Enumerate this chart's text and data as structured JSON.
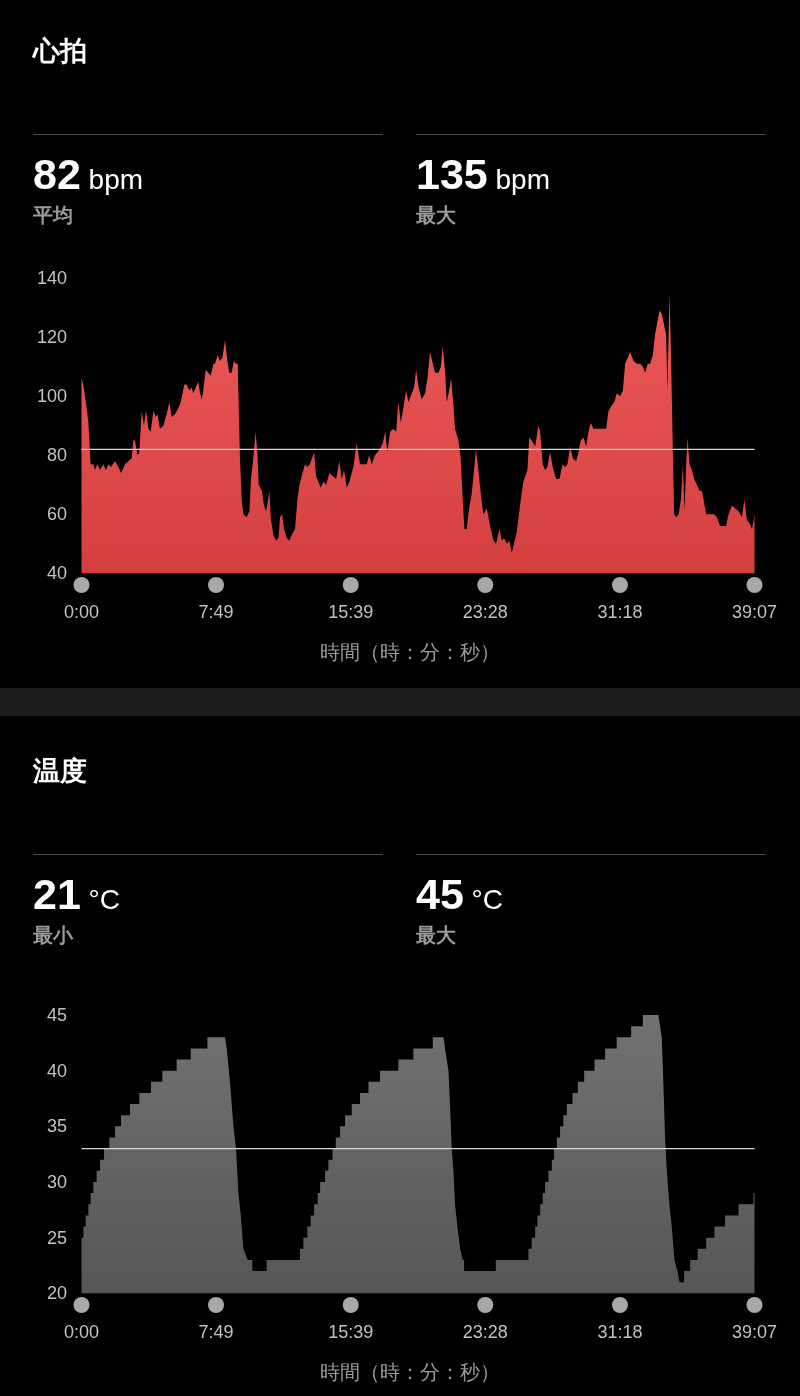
{
  "chart_data": [
    {
      "type": "area",
      "title": "心拍",
      "annotations": [
        "82 bpm",
        "平均",
        "135 bpm",
        "最大"
      ],
      "xlabel": "時間（時：分：秒）",
      "color": "#ec4545",
      "xlim": [
        0,
        39.12
      ],
      "xticks": [
        {
          "value": 0,
          "label": "0:00"
        },
        {
          "value": 7.82,
          "label": "7:49"
        },
        {
          "value": 15.65,
          "label": "15:39"
        },
        {
          "value": 23.47,
          "label": "23:28"
        },
        {
          "value": 31.3,
          "label": "31:18"
        },
        {
          "value": 39.12,
          "label": "39:07"
        }
      ],
      "ylim": [
        40,
        140
      ],
      "yticks": [
        40,
        60,
        80,
        100,
        120,
        140
      ],
      "ref_lines": [
        {
          "axis": "y",
          "value": 82,
          "color": "#d4d4d4"
        }
      ],
      "x": [
        0,
        0.1,
        0.3,
        0.4,
        0.53,
        0.69,
        0.78,
        0.92,
        1.08,
        1.27,
        1.42,
        1.56,
        1.7,
        1.95,
        2.14,
        2.3,
        2.53,
        2.72,
        2.92,
        3.01,
        3.11,
        3.25,
        3.36,
        3.5,
        3.63,
        3.75,
        3.89,
        4.02,
        4.18,
        4.31,
        4.41,
        4.56,
        4.76,
        4.95,
        5.11,
        5.24,
        5.44,
        5.63,
        5.77,
        5.98,
        6.11,
        6.27,
        6.4,
        6.5,
        6.64,
        6.79,
        6.89,
        6.99,
        7.08,
        7.22,
        7.37,
        7.51,
        7.67,
        7.76,
        7.92,
        8.05,
        8.19,
        8.34,
        8.48,
        8.59,
        8.73,
        8.86,
        8.98,
        9.08,
        9.21,
        9.31,
        9.41,
        9.6,
        9.76,
        9.85,
        9.99,
        10.12,
        10.22,
        10.3,
        10.48,
        10.61,
        10.73,
        10.82,
        10.92,
        11.0,
        11.15,
        11.31,
        11.45,
        11.54,
        11.66,
        11.77,
        11.93,
        12.08,
        12.22,
        12.41,
        12.55,
        12.67,
        12.8,
        12.99,
        13.13,
        13.28,
        13.52,
        13.63,
        13.77,
        13.91,
        14.06,
        14.22,
        14.41,
        14.6,
        14.8,
        14.99,
        15.13,
        15.26,
        15.42,
        15.57,
        15.8,
        16.0,
        16.19,
        16.43,
        16.58,
        16.72,
        16.87,
        17.06,
        17.32,
        17.51,
        17.65,
        17.78,
        17.94,
        18.13,
        18.29,
        18.42,
        18.56,
        18.71,
        18.87,
        19.0,
        19.2,
        19.33,
        19.45,
        19.59,
        19.78,
        19.97,
        20.11,
        20.26,
        20.42,
        20.55,
        20.75,
        20.89,
        21.0,
        21.14,
        21.23,
        21.37,
        21.48,
        21.62,
        21.71,
        21.91,
        22.04,
        22.16,
        22.26,
        22.39,
        22.53,
        22.68,
        22.82,
        22.93,
        23.07,
        23.21,
        23.36,
        23.56,
        23.75,
        23.95,
        24.1,
        24.29,
        24.43,
        24.56,
        24.72,
        24.87,
        25.01,
        25.14,
        25.3,
        25.49,
        25.68,
        25.92,
        26.03,
        26.17,
        26.37,
        26.56,
        26.66,
        26.81,
        26.95,
        27.08,
        27.24,
        27.39,
        27.59,
        27.78,
        27.96,
        28.11,
        28.25,
        28.4,
        28.56,
        28.75,
        28.89,
        29.02,
        29.18,
        29.33,
        29.47,
        29.6,
        29.76,
        30.15,
        30.5,
        30.63,
        30.83,
        30.96,
        31.12,
        31.31,
        31.47,
        31.6,
        31.74,
        31.89,
        32.09,
        32.28,
        32.48,
        32.63,
        32.77,
        32.91,
        33.05,
        33.21,
        33.34,
        33.44,
        33.6,
        33.73,
        33.87,
        33.98,
        34.06,
        34.18,
        34.26,
        34.36,
        34.45,
        34.57,
        34.71,
        34.84,
        34.96,
        35.05,
        35.15,
        35.23,
        35.34,
        35.48,
        35.61,
        35.77,
        35.92,
        36.06,
        36.16,
        36.31,
        36.54,
        36.78,
        36.93,
        37.12,
        37.28,
        37.47,
        37.61,
        37.81,
        38.0,
        38.2,
        38.39,
        38.53,
        38.68,
        38.84,
        38.97,
        39.07,
        39.12
      ],
      "values": [
        106,
        104,
        96,
        91,
        77,
        77,
        75,
        77,
        75,
        77,
        75,
        77,
        76,
        78,
        76,
        74,
        77,
        78,
        79,
        85,
        85,
        80,
        81,
        95,
        90,
        95,
        89,
        88,
        95,
        93,
        94,
        89,
        90,
        94,
        98,
        93,
        94,
        96,
        98,
        104,
        104,
        102,
        103,
        101,
        103,
        105,
        101,
        99,
        102,
        109,
        108,
        107,
        111,
        111,
        114,
        112,
        113,
        119,
        112,
        108,
        108,
        112,
        111,
        111,
        79,
        65,
        60,
        59,
        61,
        72,
        79,
        88,
        81,
        70,
        68,
        63,
        61,
        64,
        68,
        59,
        53,
        51,
        52,
        59,
        60,
        55,
        52,
        51,
        53,
        55,
        65,
        70,
        73,
        77,
        76,
        77,
        81,
        73,
        71,
        69,
        71,
        70,
        74,
        73,
        72,
        78,
        72,
        75,
        69,
        71,
        76,
        84,
        77,
        77,
        77,
        80,
        77,
        80,
        82,
        84,
        88,
        81,
        88,
        89,
        88,
        98,
        91,
        96,
        102,
        98,
        101,
        103,
        109,
        103,
        99,
        101,
        106,
        115,
        111,
        108,
        108,
        110,
        117,
        108,
        98,
        102,
        106,
        97,
        89,
        85,
        79,
        65,
        55,
        55,
        62,
        67,
        75,
        82,
        75,
        67,
        60,
        62,
        56,
        51,
        50,
        55,
        51,
        52,
        50,
        51,
        47,
        50,
        54,
        63,
        71,
        75,
        86,
        85,
        83,
        90,
        88,
        77,
        75,
        76,
        81,
        76,
        72,
        72,
        77,
        76,
        77,
        83,
        79,
        78,
        81,
        85,
        86,
        83,
        88,
        91,
        89,
        89,
        89,
        95,
        97,
        98,
        101,
        100,
        102,
        111,
        113,
        115,
        112,
        111,
        111,
        110,
        108,
        111,
        111,
        114,
        121,
        124,
        129,
        128,
        124,
        121,
        102,
        135,
        116,
        86,
        60,
        59,
        60,
        65,
        77,
        61,
        77,
        86,
        77,
        75,
        72,
        70,
        68,
        68,
        65,
        60,
        60,
        60,
        59,
        56,
        56,
        56,
        60,
        63,
        62,
        61,
        59,
        65,
        58,
        57,
        55,
        58,
        60
      ]
    },
    {
      "type": "area",
      "title": "温度",
      "annotations": [
        "21 °C",
        "最小",
        "45 °C",
        "最大"
      ],
      "xlabel": "時間（時：分：秒）",
      "color": "#5f5f5f",
      "xlim": [
        0,
        39.12
      ],
      "xticks": [
        {
          "value": 0,
          "label": "0:00"
        },
        {
          "value": 7.82,
          "label": "7:49"
        },
        {
          "value": 15.65,
          "label": "15:39"
        },
        {
          "value": 23.47,
          "label": "23:28"
        },
        {
          "value": 31.3,
          "label": "31:18"
        },
        {
          "value": 39.12,
          "label": "39:07"
        }
      ],
      "ylim": [
        20,
        45
      ],
      "yticks": [
        20,
        25,
        30,
        35,
        40,
        45
      ],
      "ref_lines": [
        {
          "axis": "y",
          "value": 33,
          "color": "#d4d4d4"
        }
      ],
      "x": [
        0,
        0.11,
        0.11,
        0.24,
        0.24,
        0.4,
        0.4,
        0.53,
        0.53,
        0.69,
        0.69,
        0.88,
        0.88,
        1.08,
        1.08,
        1.31,
        1.31,
        1.62,
        1.62,
        1.95,
        1.95,
        2.3,
        2.3,
        2.82,
        2.82,
        3.36,
        3.36,
        4.04,
        4.04,
        4.7,
        4.7,
        5.53,
        5.53,
        6.35,
        6.35,
        7.32,
        7.32,
        8.34,
        8.44,
        8.63,
        8.83,
        8.98,
        9.12,
        9.26,
        9.41,
        9.66,
        9.93,
        9.93,
        10.76,
        10.76,
        12.7,
        12.7,
        12.9,
        12.9,
        13.13,
        13.13,
        13.32,
        13.32,
        13.52,
        13.52,
        13.73,
        13.73,
        13.87,
        13.87,
        14.16,
        14.16,
        14.35,
        14.35,
        14.59,
        14.59,
        14.78,
        14.78,
        15.03,
        15.03,
        15.32,
        15.32,
        15.71,
        15.71,
        16.19,
        16.19,
        16.68,
        16.68,
        17.35,
        17.35,
        18.42,
        18.42,
        19.29,
        19.29,
        20.42,
        20.42,
        21.04,
        21.13,
        21.33,
        21.42,
        21.52,
        21.62,
        21.71,
        21.85,
        22.01,
        22.16,
        22.24,
        22.24,
        24.08,
        24.08,
        25.98,
        25.98,
        26.17,
        26.17,
        26.37,
        26.37,
        26.5,
        26.5,
        26.66,
        26.66,
        26.81,
        26.81,
        26.95,
        26.95,
        27.14,
        27.14,
        27.34,
        27.34,
        27.47,
        27.47,
        27.63,
        27.63,
        27.82,
        27.82,
        28.01,
        28.01,
        28.21,
        28.21,
        28.54,
        28.54,
        28.85,
        28.85,
        29.22,
        29.22,
        29.82,
        29.82,
        30.44,
        30.44,
        31.11,
        31.11,
        31.95,
        31.95,
        32.63,
        32.63,
        33.53,
        33.73,
        33.82,
        33.92,
        34.02,
        34.17,
        34.31,
        34.47,
        34.64,
        34.76,
        35.03,
        35.03,
        35.38,
        35.38,
        35.82,
        35.82,
        36.31,
        36.31,
        36.79,
        36.79,
        37.41,
        37.41,
        38.19,
        38.19,
        39.06,
        39.06,
        39.12
      ],
      "values": [
        25,
        25,
        26,
        26,
        27,
        27,
        28,
        28,
        29,
        29,
        30,
        30,
        31,
        31,
        32,
        32,
        33,
        33,
        34,
        34,
        35,
        35,
        36,
        36,
        37,
        37,
        38,
        38,
        39,
        39,
        40,
        40,
        41,
        41,
        42,
        42,
        43,
        43,
        42,
        39,
        35,
        33,
        29,
        27,
        24,
        23,
        23,
        22,
        22,
        23,
        23,
        24,
        24,
        25,
        25,
        26,
        26,
        27,
        27,
        28,
        28,
        29,
        29,
        30,
        30,
        31,
        31,
        32,
        32,
        33,
        33,
        34,
        34,
        35,
        35,
        36,
        36,
        37,
        37,
        38,
        38,
        39,
        39,
        40,
        40,
        41,
        41,
        42,
        42,
        43,
        43,
        42,
        40,
        37,
        33,
        31,
        28,
        26,
        24,
        23,
        23,
        22,
        22,
        23,
        23,
        24,
        24,
        25,
        25,
        26,
        26,
        27,
        27,
        28,
        28,
        29,
        29,
        30,
        30,
        31,
        31,
        32,
        32,
        33,
        33,
        34,
        34,
        35,
        35,
        36,
        36,
        37,
        37,
        38,
        38,
        39,
        39,
        40,
        40,
        41,
        41,
        42,
        42,
        43,
        43,
        44,
        44,
        45,
        45,
        43,
        39,
        34,
        31,
        28,
        26,
        23,
        22,
        21,
        21,
        22,
        22,
        23,
        23,
        24,
        24,
        25,
        25,
        26,
        26,
        27,
        27,
        28,
        28,
        29,
        29
      ]
    }
  ]
}
